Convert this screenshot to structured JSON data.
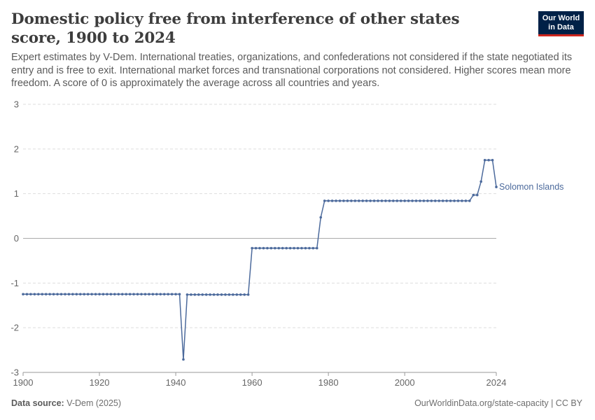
{
  "header": {
    "title": "Domestic policy free from interference of other states score, 1900 to 2024",
    "subtitle": "Expert estimates by V-Dem. International treaties, organizations, and confederations not considered if the state negotiated its entry and is free to exit. International market forces and transnational corporations not considered. Higher scores mean more freedom. A score of 0 is approximately the average across all countries and years."
  },
  "logo": {
    "line1": "Our World",
    "line2": "in Data"
  },
  "footer": {
    "source_label": "Data source:",
    "source_value": "V-Dem (2025)",
    "link": "OurWorldinData.org/state-capacity | CC BY"
  },
  "colors": {
    "series": "#4c6a9c",
    "grid": "#dddddd",
    "zero_line": "#aaaaaa"
  },
  "chart_data": {
    "type": "line",
    "xlim": [
      1900,
      2024
    ],
    "ylim": [
      -3,
      3
    ],
    "x_ticks": [
      1900,
      1920,
      1940,
      1960,
      1980,
      2000,
      2024
    ],
    "y_ticks": [
      3,
      2,
      1,
      0,
      -1,
      -2,
      -3
    ],
    "grid": true,
    "series": [
      {
        "name": "Solomon Islands",
        "points": [
          [
            1900,
            -1.25
          ],
          [
            1901,
            -1.25
          ],
          [
            1902,
            -1.25
          ],
          [
            1903,
            -1.25
          ],
          [
            1904,
            -1.25
          ],
          [
            1905,
            -1.25
          ],
          [
            1906,
            -1.25
          ],
          [
            1907,
            -1.25
          ],
          [
            1908,
            -1.25
          ],
          [
            1909,
            -1.25
          ],
          [
            1910,
            -1.25
          ],
          [
            1911,
            -1.25
          ],
          [
            1912,
            -1.25
          ],
          [
            1913,
            -1.25
          ],
          [
            1914,
            -1.25
          ],
          [
            1915,
            -1.25
          ],
          [
            1916,
            -1.25
          ],
          [
            1917,
            -1.25
          ],
          [
            1918,
            -1.25
          ],
          [
            1919,
            -1.25
          ],
          [
            1920,
            -1.25
          ],
          [
            1921,
            -1.25
          ],
          [
            1922,
            -1.25
          ],
          [
            1923,
            -1.25
          ],
          [
            1924,
            -1.25
          ],
          [
            1925,
            -1.25
          ],
          [
            1926,
            -1.25
          ],
          [
            1927,
            -1.25
          ],
          [
            1928,
            -1.25
          ],
          [
            1929,
            -1.25
          ],
          [
            1930,
            -1.25
          ],
          [
            1931,
            -1.25
          ],
          [
            1932,
            -1.25
          ],
          [
            1933,
            -1.25
          ],
          [
            1934,
            -1.25
          ],
          [
            1935,
            -1.25
          ],
          [
            1936,
            -1.25
          ],
          [
            1937,
            -1.25
          ],
          [
            1938,
            -1.25
          ],
          [
            1939,
            -1.25
          ],
          [
            1940,
            -1.25
          ],
          [
            1941,
            -1.25
          ],
          [
            1942,
            -2.71
          ],
          [
            1943,
            -1.26
          ],
          [
            1944,
            -1.26
          ],
          [
            1945,
            -1.26
          ],
          [
            1946,
            -1.26
          ],
          [
            1947,
            -1.26
          ],
          [
            1948,
            -1.26
          ],
          [
            1949,
            -1.26
          ],
          [
            1950,
            -1.26
          ],
          [
            1951,
            -1.26
          ],
          [
            1952,
            -1.26
          ],
          [
            1953,
            -1.26
          ],
          [
            1954,
            -1.26
          ],
          [
            1955,
            -1.26
          ],
          [
            1956,
            -1.26
          ],
          [
            1957,
            -1.26
          ],
          [
            1958,
            -1.26
          ],
          [
            1959,
            -1.26
          ],
          [
            1960,
            -0.22
          ],
          [
            1961,
            -0.22
          ],
          [
            1962,
            -0.22
          ],
          [
            1963,
            -0.22
          ],
          [
            1964,
            -0.22
          ],
          [
            1965,
            -0.22
          ],
          [
            1966,
            -0.22
          ],
          [
            1967,
            -0.22
          ],
          [
            1968,
            -0.22
          ],
          [
            1969,
            -0.22
          ],
          [
            1970,
            -0.22
          ],
          [
            1971,
            -0.22
          ],
          [
            1972,
            -0.22
          ],
          [
            1973,
            -0.22
          ],
          [
            1974,
            -0.22
          ],
          [
            1975,
            -0.22
          ],
          [
            1976,
            -0.22
          ],
          [
            1977,
            -0.22
          ],
          [
            1978,
            0.47
          ],
          [
            1979,
            0.84
          ],
          [
            1980,
            0.84
          ],
          [
            1981,
            0.84
          ],
          [
            1982,
            0.84
          ],
          [
            1983,
            0.84
          ],
          [
            1984,
            0.84
          ],
          [
            1985,
            0.84
          ],
          [
            1986,
            0.84
          ],
          [
            1987,
            0.84
          ],
          [
            1988,
            0.84
          ],
          [
            1989,
            0.84
          ],
          [
            1990,
            0.84
          ],
          [
            1991,
            0.84
          ],
          [
            1992,
            0.84
          ],
          [
            1993,
            0.84
          ],
          [
            1994,
            0.84
          ],
          [
            1995,
            0.84
          ],
          [
            1996,
            0.84
          ],
          [
            1997,
            0.84
          ],
          [
            1998,
            0.84
          ],
          [
            1999,
            0.84
          ],
          [
            2000,
            0.84
          ],
          [
            2001,
            0.84
          ],
          [
            2002,
            0.84
          ],
          [
            2003,
            0.84
          ],
          [
            2004,
            0.84
          ],
          [
            2005,
            0.84
          ],
          [
            2006,
            0.84
          ],
          [
            2007,
            0.84
          ],
          [
            2008,
            0.84
          ],
          [
            2009,
            0.84
          ],
          [
            2010,
            0.84
          ],
          [
            2011,
            0.84
          ],
          [
            2012,
            0.84
          ],
          [
            2013,
            0.84
          ],
          [
            2014,
            0.84
          ],
          [
            2015,
            0.84
          ],
          [
            2016,
            0.84
          ],
          [
            2017,
            0.84
          ],
          [
            2018,
            0.97
          ],
          [
            2019,
            0.97
          ],
          [
            2020,
            1.27
          ],
          [
            2021,
            1.75
          ],
          [
            2022,
            1.75
          ],
          [
            2023,
            1.75
          ],
          [
            2024,
            1.15
          ]
        ]
      }
    ]
  }
}
